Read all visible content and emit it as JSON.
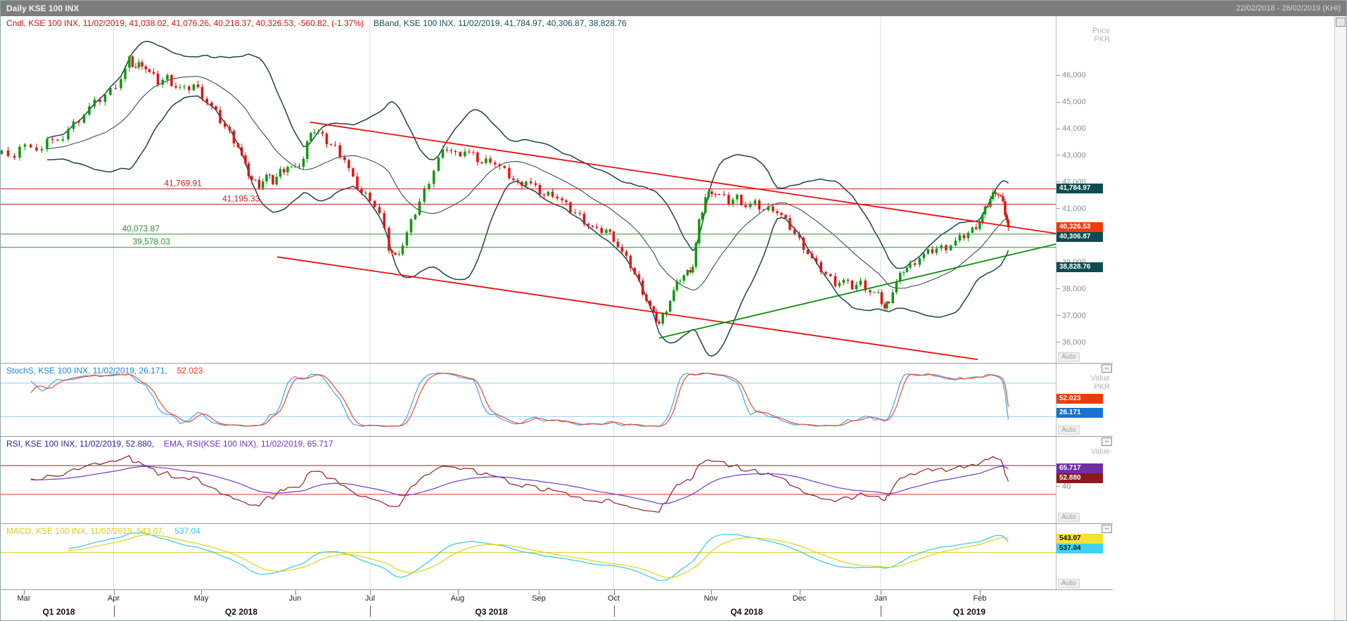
{
  "titlebar": {
    "title": "Daily KSE 100 INX",
    "range": "22/02/2018 - 28/02/2019 (KHI)"
  },
  "time_axis": {
    "months": [
      {
        "label": "Mar",
        "f": 0.022
      },
      {
        "label": "Apr",
        "f": 0.107
      },
      {
        "label": "May",
        "f": 0.19
      },
      {
        "label": "Jun",
        "f": 0.279
      },
      {
        "label": "Jul",
        "f": 0.35
      },
      {
        "label": "Aug",
        "f": 0.433
      },
      {
        "label": "Sep",
        "f": 0.51
      },
      {
        "label": "Oct",
        "f": 0.581
      },
      {
        "label": "Nov",
        "f": 0.673
      },
      {
        "label": "Dec",
        "f": 0.757
      },
      {
        "label": "Jan",
        "f": 0.834
      },
      {
        "label": "Feb",
        "f": 0.928
      }
    ],
    "quarters": [
      {
        "label": "Q1 2018",
        "f": 0.055
      },
      {
        "label": "Q2 2018",
        "f": 0.228
      },
      {
        "label": "Q3 2018",
        "f": 0.465
      },
      {
        "label": "Q4 2018",
        "f": 0.707
      },
      {
        "label": "Q1 2019",
        "f": 0.918
      }
    ],
    "boundaries": [
      0.107,
      0.35,
      0.581,
      0.834
    ]
  },
  "chart_data": [
    {
      "id": "p-main",
      "type": "candlestick",
      "title": "Daily KSE 100 INX",
      "legend": [
        {
          "text": "Cndl, KSE 100 INX, 11/02/2019, 41,038.02, 41,076.26, 40,218.37, 40,326.53, -560.82, (-1.37%)",
          "color": "#cc1414"
        },
        {
          "text": "BBand, KSE 100 INX, 11/02/2019, 41,784.97, 40,306.87, 38,828.76",
          "color": "#114e57"
        }
      ],
      "ylim": [
        35250,
        48240
      ],
      "yticks": [
        {
          "v": 46000,
          "label": "46,000"
        },
        {
          "v": 45000,
          "label": "45,000"
        },
        {
          "v": 44000,
          "label": "44,000"
        },
        {
          "v": 43000,
          "label": "43,000"
        },
        {
          "v": 42000,
          "label": "42,000"
        },
        {
          "v": 41000,
          "label": "41,000"
        },
        {
          "v": 40000,
          "label": "40,000"
        },
        {
          "v": 39000,
          "label": "39,000"
        },
        {
          "v": 38000,
          "label": "38,000"
        },
        {
          "v": 37000,
          "label": "37,000"
        },
        {
          "v": 36000,
          "label": "36,000"
        }
      ],
      "levels": [
        {
          "v": 41769.91,
          "label": "41,769.91",
          "color": "#c02020",
          "label_f": 0.155
        },
        {
          "v": 41195.33,
          "label": "41,195.33",
          "color": "#c02020",
          "label_f": 0.21
        },
        {
          "v": 40073.87,
          "label": "40,073.87",
          "color": "#2f8f2f",
          "label_f": 0.115
        },
        {
          "v": 39578.03,
          "label": "39,578.03",
          "color": "#2f8f2f",
          "label_f": 0.125
        }
      ],
      "trendlines": [
        {
          "x1": 0.293,
          "y1": 44270,
          "x2": 1.0,
          "y2": 40100,
          "color": "#ec0e0e"
        },
        {
          "x1": 0.262,
          "y1": 39220,
          "x2": 0.926,
          "y2": 35380,
          "color": "#ec0e0e"
        },
        {
          "x1": 0.624,
          "y1": 36180,
          "x2": 1.0,
          "y2": 39700,
          "color": "#0a8f0a"
        }
      ],
      "bollinger": {
        "window": 20,
        "mult": 2,
        "color": "#1d424d"
      },
      "candle_colors": {
        "up": "#0b9a0b",
        "down": "#e31212"
      },
      "value_tags": [
        {
          "v": 41784.97,
          "label": "41,784.97",
          "bg": "#0d4d52",
          "fg": "#ffffff"
        },
        {
          "v": 40326.53,
          "label": "40,326.53",
          "bg": "#eb3c0f",
          "fg": "#ffffff"
        },
        {
          "v": 40306.87,
          "label": "40,306.87",
          "bg": "#0d4d52",
          "fg": "#ffffff"
        },
        {
          "v": 38828.76,
          "label": "38,828.76",
          "bg": "#0d4d52",
          "fg": "#ffffff"
        }
      ],
      "axis_header": [
        "Price",
        "PKR"
      ],
      "auto_label": "Auto",
      "win_icon": false,
      "close_anchors": [
        [
          0.001,
          43210
        ],
        [
          0.013,
          42890
        ],
        [
          0.023,
          43530
        ],
        [
          0.034,
          43115
        ],
        [
          0.044,
          43690
        ],
        [
          0.054,
          43435
        ],
        [
          0.064,
          44010
        ],
        [
          0.074,
          44395
        ],
        [
          0.084,
          44810
        ],
        [
          0.094,
          45130
        ],
        [
          0.104,
          45450
        ],
        [
          0.114,
          45935
        ],
        [
          0.122,
          46575
        ],
        [
          0.128,
          46320
        ],
        [
          0.134,
          46510
        ],
        [
          0.141,
          46095
        ],
        [
          0.149,
          45775
        ],
        [
          0.158,
          45935
        ],
        [
          0.166,
          45615
        ],
        [
          0.174,
          45455
        ],
        [
          0.183,
          45680
        ],
        [
          0.191,
          45295
        ],
        [
          0.2,
          44815
        ],
        [
          0.208,
          44335
        ],
        [
          0.217,
          43855
        ],
        [
          0.225,
          43375
        ],
        [
          0.232,
          42575
        ],
        [
          0.238,
          42095
        ],
        [
          0.245,
          41935
        ],
        [
          0.252,
          42255
        ],
        [
          0.258,
          42030
        ],
        [
          0.265,
          42415
        ],
        [
          0.272,
          42640
        ],
        [
          0.279,
          42480
        ],
        [
          0.287,
          42895
        ],
        [
          0.294,
          44015
        ],
        [
          0.301,
          43855
        ],
        [
          0.309,
          43535
        ],
        [
          0.317,
          43310
        ],
        [
          0.326,
          42895
        ],
        [
          0.334,
          42095
        ],
        [
          0.342,
          41615
        ],
        [
          0.35,
          41455
        ],
        [
          0.359,
          40815
        ],
        [
          0.368,
          39535
        ],
        [
          0.374,
          39215
        ],
        [
          0.381,
          39695
        ],
        [
          0.389,
          40495
        ],
        [
          0.397,
          41295
        ],
        [
          0.406,
          42095
        ],
        [
          0.415,
          42895
        ],
        [
          0.423,
          43310
        ],
        [
          0.431,
          43055
        ],
        [
          0.44,
          43215
        ],
        [
          0.448,
          42990
        ],
        [
          0.456,
          42735
        ],
        [
          0.464,
          42895
        ],
        [
          0.473,
          42575
        ],
        [
          0.482,
          42255
        ],
        [
          0.49,
          41935
        ],
        [
          0.498,
          42095
        ],
        [
          0.507,
          41775
        ],
        [
          0.515,
          41520
        ],
        [
          0.523,
          41615
        ],
        [
          0.532,
          41295
        ],
        [
          0.54,
          40975
        ],
        [
          0.549,
          40750
        ],
        [
          0.557,
          40430
        ],
        [
          0.565,
          40175
        ],
        [
          0.574,
          40240
        ],
        [
          0.581,
          39920
        ],
        [
          0.589,
          39375
        ],
        [
          0.597,
          38895
        ],
        [
          0.605,
          38255
        ],
        [
          0.612,
          37615
        ],
        [
          0.619,
          37040
        ],
        [
          0.624,
          36720
        ],
        [
          0.631,
          37295
        ],
        [
          0.638,
          37935
        ],
        [
          0.644,
          38415
        ],
        [
          0.651,
          38640
        ],
        [
          0.656,
          38895
        ],
        [
          0.662,
          40495
        ],
        [
          0.668,
          41455
        ],
        [
          0.674,
          41710
        ],
        [
          0.681,
          41520
        ],
        [
          0.69,
          41295
        ],
        [
          0.698,
          41455
        ],
        [
          0.706,
          41135
        ],
        [
          0.715,
          41200
        ],
        [
          0.723,
          40975
        ],
        [
          0.732,
          41070
        ],
        [
          0.74,
          40750
        ],
        [
          0.748,
          40335
        ],
        [
          0.757,
          39855
        ],
        [
          0.765,
          39375
        ],
        [
          0.773,
          38895
        ],
        [
          0.782,
          38575
        ],
        [
          0.791,
          38255
        ],
        [
          0.799,
          38320
        ],
        [
          0.807,
          38095
        ],
        [
          0.815,
          38255
        ],
        [
          0.824,
          37935
        ],
        [
          0.832,
          37775
        ],
        [
          0.838,
          37295
        ],
        [
          0.842,
          37615
        ],
        [
          0.849,
          38255
        ],
        [
          0.856,
          38735
        ],
        [
          0.862,
          38895
        ],
        [
          0.871,
          39215
        ],
        [
          0.879,
          39375
        ],
        [
          0.887,
          39535
        ],
        [
          0.896,
          39600
        ],
        [
          0.905,
          39790
        ],
        [
          0.913,
          40015
        ],
        [
          0.921,
          40240
        ],
        [
          0.928,
          40560
        ],
        [
          0.933,
          40975
        ],
        [
          0.938,
          41390
        ],
        [
          0.943,
          41710
        ],
        [
          0.948,
          41455
        ],
        [
          0.952,
          40880
        ],
        [
          0.955,
          40326.53
        ]
      ]
    },
    {
      "id": "p-stoch",
      "type": "stochastic",
      "legend": [
        {
          "text": "StochS, KSE 100 INX, 11/02/2019, 26.171,",
          "color": "#1c86d6"
        },
        {
          "text": "52.023",
          "color": "#eb3c0f"
        }
      ],
      "ylim": [
        -15,
        115
      ],
      "ref_lines": [
        {
          "v": 80,
          "color": "#93c9ec"
        },
        {
          "v": 20,
          "color": "#93c9ec"
        }
      ],
      "params": {
        "period": 10,
        "smooth_k": 3,
        "smooth_d": 3
      },
      "colors": {
        "k": "#4aa0e0",
        "d": "#ea4a3a"
      },
      "value_tags": [
        {
          "v": 52.023,
          "label": "52.023",
          "bg": "#eb3c0f",
          "fg": "#ffffff"
        },
        {
          "v": 26.171,
          "label": "26.171",
          "bg": "#1874cd",
          "fg": "#ffffff"
        }
      ],
      "axis_header": [
        "Value",
        "PKR"
      ],
      "auto_label": "Auto",
      "win_icon": true
    },
    {
      "id": "p-rsi",
      "type": "rsi",
      "legend": [
        {
          "text": "RSI, KSE 100 INX, 11/02/2019, 52.880,",
          "color": "#26269e"
        },
        {
          "text": "EMA, RSI(KSE 100 INX), 11/02/2019, 65.717",
          "color": "#6a35c8"
        }
      ],
      "ylim": [
        -10,
        110
      ],
      "ref_lines": [
        {
          "v": 70,
          "color": "#8b2424"
        },
        {
          "v": 30,
          "color": "#e03030"
        }
      ],
      "yticks": [
        {
          "v": 40,
          "label": "40"
        }
      ],
      "params": {
        "period": 14,
        "ema_span": 25
      },
      "colors": {
        "rsi": "#8f2121",
        "ema": "#6a3fc8"
      },
      "value_tags": [
        {
          "v": 65.717,
          "label": "65.717",
          "bg": "#7030a0",
          "fg": "#ffffff"
        },
        {
          "v": 52.88,
          "label": "52.880",
          "bg": "#8b1a1a",
          "fg": "#ffffff"
        }
      ],
      "axis_header": [
        "Value"
      ],
      "auto_label": "Auto",
      "win_icon": true
    },
    {
      "id": "p-macd",
      "type": "macd",
      "legend": [
        {
          "text": "MACD, KSE 100 INX, 11/02/2019, 543.07,",
          "color": "#ddca12"
        },
        {
          "text": "537.04",
          "color": "#35c8e8"
        }
      ],
      "ref_lines": [
        {
          "v": 0,
          "color": "#d6c92a"
        }
      ],
      "params": {
        "fast": 12,
        "slow": 26,
        "signal": 9
      },
      "colors": {
        "macd": "#35c8e8",
        "signal": "#e3d117"
      },
      "value_tags": [
        {
          "v": 543.07,
          "label": "543.07",
          "bg": "#f2e23a",
          "fg": "#111111"
        },
        {
          "v": 537.04,
          "label": "537.04",
          "bg": "#3fd2ee",
          "fg": "#111111"
        }
      ],
      "axis_header": [],
      "auto_label": "Auto",
      "win_icon": true
    }
  ]
}
